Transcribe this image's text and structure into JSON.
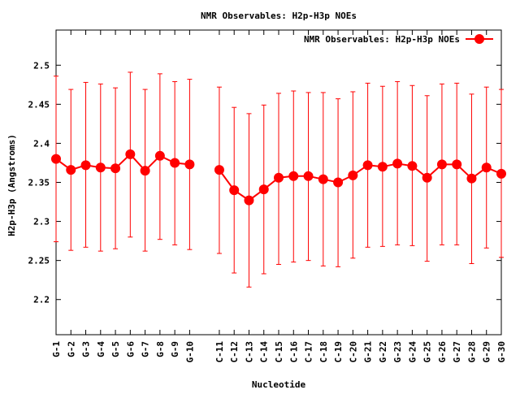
{
  "colors": {
    "series": "#ff0000",
    "axis": "#000000",
    "background": "#ffffff"
  },
  "chart_data": {
    "type": "line",
    "title": "NMR Observables: H2p-H3p NOEs",
    "xlabel": "Nucleotide",
    "ylabel": "H2p-H3p (Angstroms)",
    "ylim": [
      2.155,
      2.545
    ],
    "yticks": [
      2.2,
      2.25,
      2.3,
      2.35,
      2.4,
      2.45,
      2.5
    ],
    "ytick_labels": [
      "2.2",
      "2.25",
      "2.3",
      "2.35",
      "2.4",
      "2.45",
      "2.5"
    ],
    "categories": [
      "G-1",
      "G-2",
      "G-3",
      "G-4",
      "G-5",
      "G-6",
      "G-7",
      "G-8",
      "G-9",
      "G-10",
      "C-11",
      "C-12",
      "C-13",
      "C-14",
      "C-15",
      "C-16",
      "C-17",
      "C-18",
      "C-19",
      "C-20",
      "G-21",
      "G-22",
      "G-23",
      "G-24",
      "G-25",
      "G-26",
      "G-27",
      "G-28",
      "G-29",
      "G-30"
    ],
    "x": [
      1,
      2,
      3,
      4,
      5,
      6,
      7,
      8,
      9,
      10,
      12,
      13,
      14,
      15,
      16,
      17,
      18,
      19,
      20,
      21,
      22,
      23,
      24,
      25,
      26,
      27,
      28,
      29,
      30,
      31
    ],
    "xlim": [
      1,
      31
    ],
    "legend_position": "top-right",
    "grid": false,
    "series": [
      {
        "name": "NMR Observables: H2p-H3p NOEs",
        "color": "#ff0000",
        "values": [
          2.38,
          2.366,
          2.372,
          2.369,
          2.368,
          2.386,
          2.365,
          2.384,
          2.375,
          2.373,
          2.366,
          2.34,
          2.327,
          2.341,
          2.356,
          2.358,
          2.358,
          2.354,
          2.35,
          2.359,
          2.372,
          2.37,
          2.374,
          2.371,
          2.356,
          2.373,
          2.373,
          2.355,
          2.369,
          2.361
        ],
        "error_low": [
          2.274,
          2.263,
          2.267,
          2.262,
          2.265,
          2.28,
          2.262,
          2.277,
          2.27,
          2.264,
          2.259,
          2.234,
          2.216,
          2.233,
          2.245,
          2.248,
          2.25,
          2.243,
          2.242,
          2.253,
          2.267,
          2.268,
          2.27,
          2.269,
          2.249,
          2.27,
          2.27,
          2.246,
          2.266,
          2.254
        ],
        "error_high": [
          2.486,
          2.469,
          2.478,
          2.476,
          2.471,
          2.491,
          2.469,
          2.489,
          2.479,
          2.482,
          2.472,
          2.446,
          2.438,
          2.449,
          2.464,
          2.467,
          2.465,
          2.465,
          2.457,
          2.466,
          2.477,
          2.473,
          2.479,
          2.474,
          2.461,
          2.476,
          2.477,
          2.463,
          2.472,
          2.469
        ]
      }
    ]
  }
}
